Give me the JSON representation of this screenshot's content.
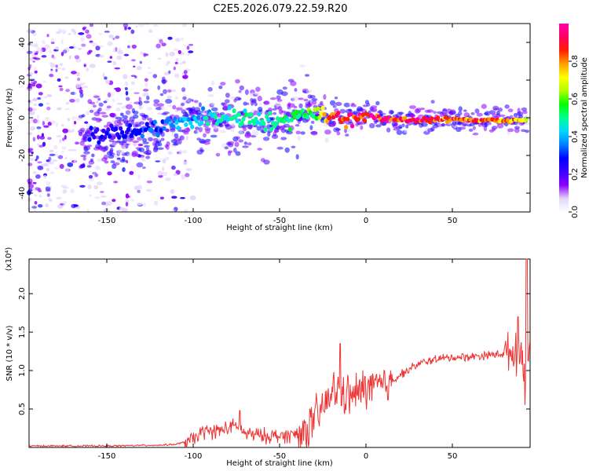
{
  "title": "C2E5.2026.079.22.59.R20",
  "chart_data": [
    {
      "type": "heatmap",
      "xlabel": "Height of straight line (km)",
      "ylabel": "Frequency (Hz)",
      "xlim": [
        -195,
        95
      ],
      "ylim": [
        -50,
        50
      ],
      "xticks": [
        -150,
        -100,
        -50,
        0,
        50
      ],
      "yticks": [
        -40,
        -20,
        0,
        20,
        40
      ],
      "colorbar": {
        "label": "Normalized spectral amplitude",
        "range": [
          0,
          1
        ],
        "ticks": [
          "0.0",
          "0.2",
          "0.4",
          "0.6",
          "0.8"
        ],
        "colors": [
          "#ffffff",
          "#e4d6fb",
          "#8b00ff",
          "#3a00ff",
          "#0000ff",
          "#0080ff",
          "#00d8ff",
          "#00ff90",
          "#00ff00",
          "#b0ff00",
          "#ffff00",
          "#ffa000",
          "#ff2000",
          "#ff0060",
          "#ff00b0"
        ]
      },
      "ridge": {
        "x": [
          -150,
          -130,
          -110,
          -90,
          -70,
          -50,
          -40,
          -30,
          -20,
          -10,
          0,
          10,
          30,
          50,
          70,
          85,
          92
        ],
        "frequency": [
          -8,
          -7,
          -3,
          0,
          1,
          -3,
          2,
          3,
          1,
          -1,
          2,
          -1,
          -1,
          -1,
          -1,
          -2,
          -1
        ],
        "amplitude": [
          0.25,
          0.3,
          0.4,
          0.45,
          0.5,
          0.5,
          0.55,
          0.6,
          0.85,
          0.9,
          0.95,
          0.9,
          0.9,
          0.85,
          0.85,
          0.8,
          0.7
        ]
      }
    },
    {
      "type": "line",
      "xlabel": "Height of straight line (km)",
      "ylabel": "SNR (10 * v/v)",
      "yscale_note": "(x10⁴)",
      "xlim": [
        -195,
        95
      ],
      "ylim": [
        0,
        2.45
      ],
      "xticks": [
        -150,
        -100,
        -50,
        0,
        50
      ],
      "yticks": [
        "0.5",
        "1.0",
        "1.5",
        "2.0"
      ],
      "line_color": "#ee3333",
      "series": [
        {
          "x": [
            -195,
            -150,
            -120,
            -110,
            -100,
            -95,
            -85,
            -75,
            -70,
            -60,
            -50,
            -40,
            -35,
            -30,
            -25,
            -20,
            -15,
            -10,
            -5,
            0,
            5,
            10,
            20,
            30,
            40,
            50,
            60,
            70,
            80,
            85,
            88,
            90,
            92,
            95
          ],
          "y": [
            0.02,
            0.02,
            0.03,
            0.04,
            0.1,
            0.2,
            0.22,
            0.28,
            0.18,
            0.15,
            0.15,
            0.17,
            0.22,
            0.35,
            0.5,
            0.7,
            0.75,
            0.65,
            0.7,
            0.78,
            0.8,
            0.78,
            0.95,
            1.08,
            1.15,
            1.17,
            1.18,
            1.2,
            1.22,
            1.25,
            1.2,
            1.3,
            0.8,
            1.3
          ],
          "peaks": [
            {
              "x": -73,
              "y": 0.48
            },
            {
              "x": -15,
              "y": 1.35
            },
            {
              "x": 88,
              "y": 1.7
            },
            {
              "x": 93,
              "y": 2.45
            }
          ]
        }
      ]
    }
  ]
}
